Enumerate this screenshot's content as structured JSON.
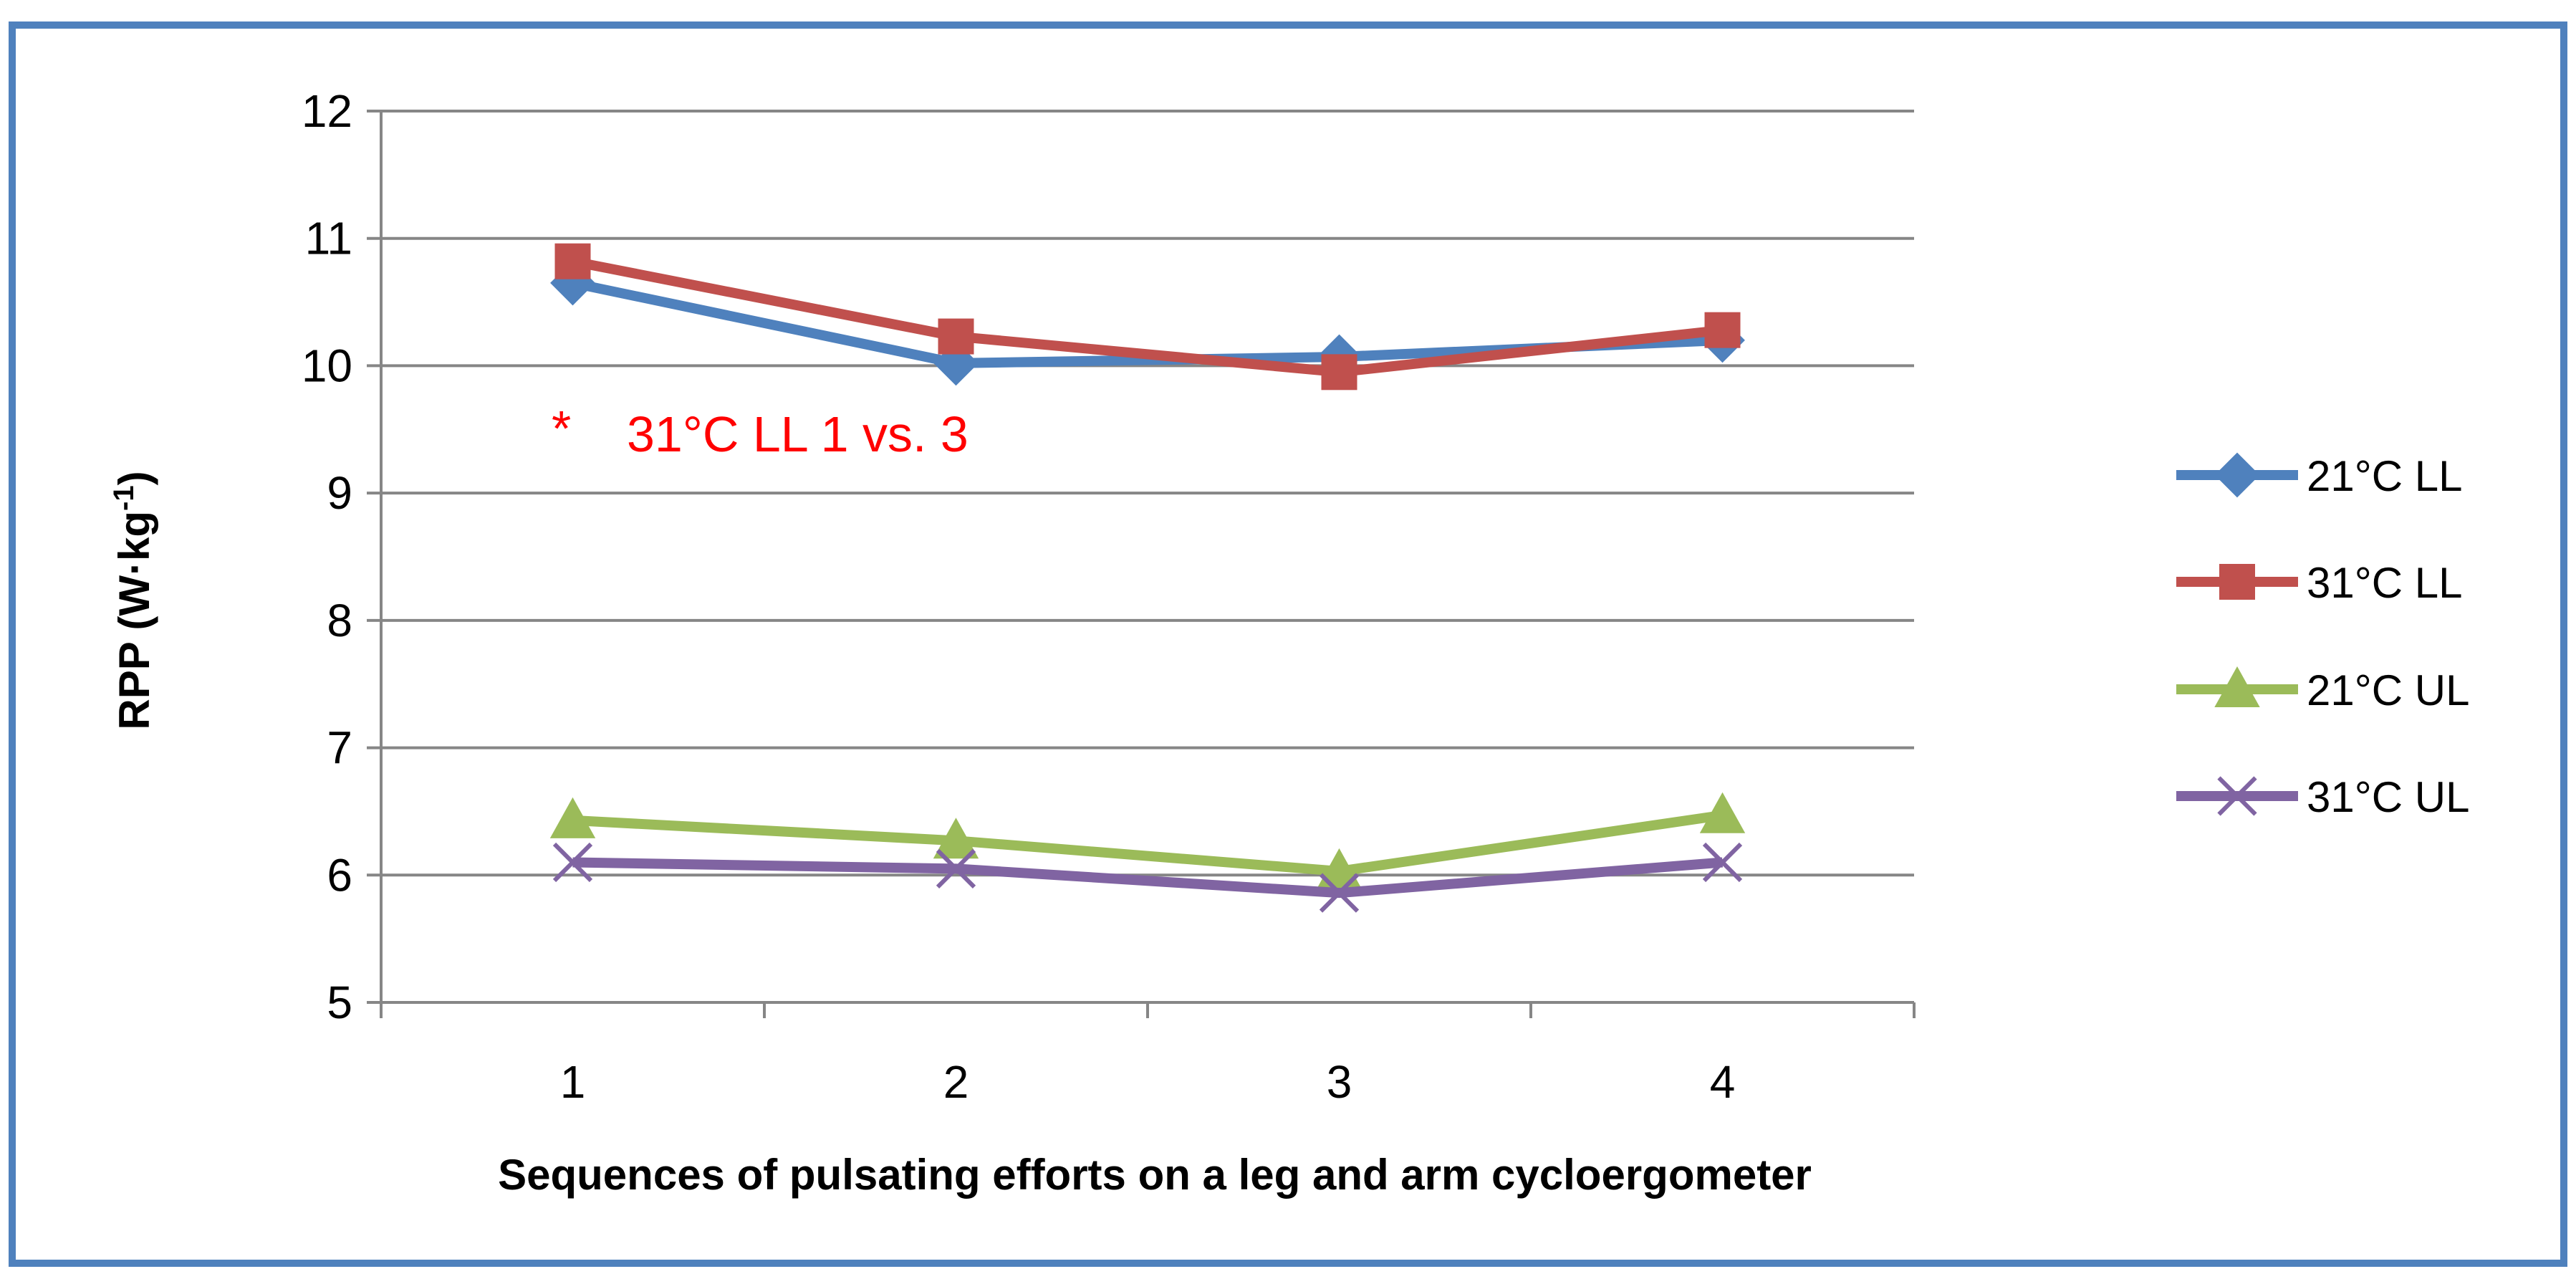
{
  "chart_data": {
    "type": "line",
    "title": "",
    "xlabel": "Sequences of pulsating efforts on a leg and arm cycloergometer",
    "ylabel_main": "RPP (W·kg",
    "ylabel_sup": "-1",
    "ylabel_close": ")",
    "ylim": [
      5,
      12
    ],
    "yticks": [
      5,
      6,
      7,
      8,
      9,
      10,
      11,
      12
    ],
    "categories": [
      "1",
      "2",
      "3",
      "4"
    ],
    "grid": true,
    "legend_position": "right",
    "series": [
      {
        "name": "21°C LL",
        "values": [
          10.65,
          10.02,
          10.07,
          10.2
        ],
        "color": "#4F81BD",
        "marker": "diamond"
      },
      {
        "name": "31°C LL",
        "values": [
          10.82,
          10.23,
          9.95,
          10.28
        ],
        "color": "#C0504D",
        "marker": "square"
      },
      {
        "name": "21°C UL",
        "values": [
          6.43,
          6.27,
          6.03,
          6.47
        ],
        "color": "#9BBB59",
        "marker": "triangle"
      },
      {
        "name": "31°C UL",
        "values": [
          6.1,
          6.05,
          5.86,
          6.1
        ],
        "color": "#8064A2",
        "marker": "x"
      }
    ],
    "annotation": {
      "star": "*",
      "text": "31°C LL 1 vs. 3",
      "color": "#FF0000"
    }
  }
}
